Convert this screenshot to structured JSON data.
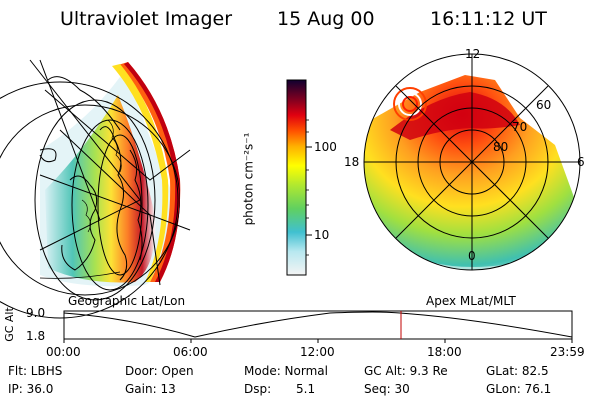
{
  "header": {
    "instrument": "Ultraviolet Imager",
    "date": "15 Aug 00",
    "time": "16:11:12 UT"
  },
  "left_panel": {
    "caption": "Geographic Lat/Lon"
  },
  "right_panel": {
    "caption": "Apex MLat/MLT",
    "mlt_labels": {
      "top": "12",
      "right": "6",
      "bottom": "0",
      "left": "18"
    },
    "mlat_labels": [
      "60",
      "70",
      "80"
    ]
  },
  "colorbar": {
    "unit_label": "photon cm⁻²s⁻¹",
    "ticks": [
      "100",
      "10"
    ],
    "scale": "log",
    "colors": [
      "#f0f0f0",
      "#40c0d0",
      "#80e040",
      "#ffff00",
      "#ff9000",
      "#ff2000",
      "#900010",
      "#100030"
    ]
  },
  "altitude_plot": {
    "ylabel": "GC Alt",
    "yticks": [
      "9.0",
      "1.8"
    ],
    "xticks": [
      "00:00",
      "06:00",
      "12:00",
      "18:00",
      "23:59"
    ],
    "marker_color": "#c00000",
    "marker_time_fraction": 0.674
  },
  "info": {
    "flt": "Flt: LBHS",
    "ip": "IP: 36.0",
    "door": "Door: Open",
    "gain": "Gain: 13",
    "mode": "Mode: Normal",
    "dsp_label": "Dsp:",
    "dsp_value": "5.1",
    "gcalt": "GC Alt: 9.3 Re",
    "seq": "Seq: 30",
    "glat": "GLat: 82.5",
    "glon": "GLon: 76.1"
  }
}
